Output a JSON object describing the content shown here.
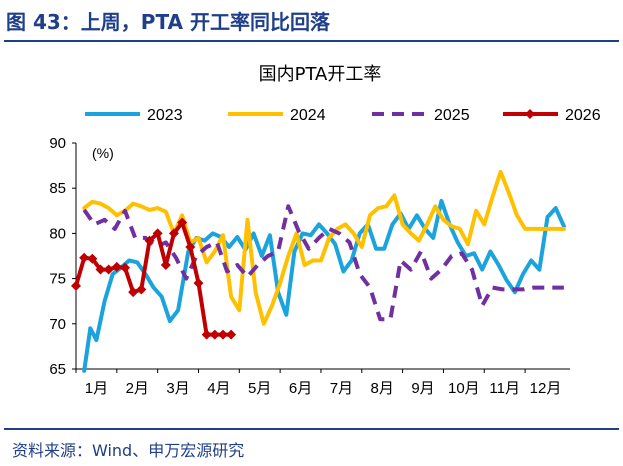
{
  "figure_title": "图 43：上周，PTA 开工率同比回落",
  "source": "资料来源：Wind、申万宏源研究",
  "chart_data": {
    "type": "line",
    "title": "国内PTA开工率",
    "unit": "(%)",
    "ylim": [
      65,
      90
    ],
    "yticks": [
      65,
      70,
      75,
      80,
      85,
      90
    ],
    "xlim": [
      0,
      12.1
    ],
    "xtick_labels": [
      "1月",
      "2月",
      "3月",
      "4月",
      "5月",
      "6月",
      "7月",
      "8月",
      "9月",
      "10月",
      "11月",
      "12月"
    ],
    "legend_position": "top",
    "grid": false,
    "series": [
      {
        "name": "2023",
        "color": "#1aa3dc",
        "dash": "solid",
        "markers": false,
        "x": [
          0.2,
          0.35,
          0.5,
          0.7,
          0.9,
          1.1,
          1.3,
          1.5,
          1.7,
          1.9,
          2.1,
          2.3,
          2.5,
          2.75,
          2.95,
          3.15,
          3.35,
          3.55,
          3.75,
          3.95,
          4.15,
          4.35,
          4.55,
          4.75,
          4.95,
          5.15,
          5.35,
          5.55,
          5.75,
          5.95,
          6.15,
          6.35,
          6.55,
          6.75,
          6.95,
          7.15,
          7.35,
          7.55,
          7.75,
          7.95,
          8.15,
          8.35,
          8.55,
          8.75,
          8.95,
          9.15,
          9.35,
          9.55,
          9.75,
          9.95,
          10.15,
          10.35,
          10.55,
          10.75,
          10.95,
          11.15,
          11.35,
          11.55,
          11.75,
          11.95
        ],
        "y": [
          64.8,
          69.5,
          68.2,
          72.5,
          75.5,
          76.2,
          77.0,
          76.8,
          75.5,
          74.0,
          73.0,
          70.3,
          71.5,
          78.0,
          79.5,
          79.2,
          80.0,
          79.6,
          78.5,
          79.6,
          78.2,
          80.0,
          77.5,
          79.8,
          73.5,
          71.0,
          78.0,
          80.0,
          79.8,
          81.0,
          80.0,
          78.8,
          75.8,
          77.0,
          80.0,
          81.0,
          78.3,
          78.3,
          81.0,
          82.2,
          80.5,
          82.0,
          80.5,
          79.5,
          83.6,
          81.0,
          79.0,
          77.5,
          77.8,
          76.0,
          78.0,
          76.5,
          74.8,
          73.5,
          75.5,
          77.0,
          76.0,
          81.8,
          82.8,
          80.8
        ]
      },
      {
        "name": "2024",
        "color": "#ffc000",
        "dash": "solid",
        "markers": false,
        "x": [
          0.2,
          0.4,
          0.6,
          0.8,
          1.0,
          1.2,
          1.4,
          1.6,
          1.8,
          2.0,
          2.2,
          2.4,
          2.6,
          2.8,
          3.0,
          3.2,
          3.4,
          3.6,
          3.8,
          4.0,
          4.2,
          4.4,
          4.6,
          4.8,
          5.0,
          5.2,
          5.4,
          5.6,
          5.8,
          6.0,
          6.2,
          6.4,
          6.6,
          6.8,
          7.0,
          7.2,
          7.4,
          7.6,
          7.8,
          8.0,
          8.2,
          8.4,
          8.6,
          8.8,
          9.0,
          9.2,
          9.4,
          9.6,
          9.8,
          10.0,
          10.2,
          10.4,
          10.6,
          10.8,
          11.0,
          11.2,
          11.4,
          11.6,
          11.8,
          11.95
        ],
        "y": [
          82.8,
          83.5,
          83.3,
          82.8,
          82.0,
          82.5,
          83.3,
          83.0,
          82.6,
          82.8,
          82.4,
          80.0,
          82.0,
          79.0,
          79.5,
          76.8,
          78.0,
          79.8,
          73.0,
          71.5,
          81.5,
          73.5,
          70.0,
          72.0,
          74.5,
          77.5,
          80.0,
          76.5,
          77.0,
          77.0,
          79.5,
          80.5,
          81.0,
          80.0,
          78.5,
          82.0,
          82.8,
          83.0,
          84.2,
          81.0,
          80.0,
          79.2,
          81.0,
          83.0,
          81.5,
          80.8,
          80.5,
          78.8,
          82.5,
          81.0,
          84.0,
          86.8,
          84.5,
          82.0,
          80.5,
          80.5,
          80.5,
          80.5,
          80.5,
          80.5
        ]
      },
      {
        "name": "2025",
        "color": "#7030a0",
        "dash": "dashed",
        "markers": false,
        "x": [
          0.2,
          0.45,
          0.7,
          0.95,
          1.2,
          1.45,
          1.7,
          1.95,
          2.2,
          2.45,
          2.7,
          2.95,
          3.2,
          3.45,
          3.7,
          3.95,
          4.2,
          4.45,
          4.7,
          4.95,
          5.2,
          5.45,
          5.7,
          5.95,
          6.2,
          6.45,
          6.7,
          6.95,
          7.2,
          7.45,
          7.7,
          7.95,
          8.2,
          8.45,
          8.7,
          8.95,
          9.2,
          9.45,
          9.7,
          9.95,
          10.2,
          10.45,
          10.7,
          10.95,
          11.2,
          11.45,
          11.7,
          11.95
        ],
        "y": [
          82.6,
          81.0,
          81.5,
          80.5,
          82.5,
          79.5,
          79.5,
          78.5,
          79.0,
          77.3,
          75.0,
          77.5,
          78.5,
          79.0,
          75.8,
          76.5,
          75.2,
          76.5,
          77.5,
          78.0,
          83.0,
          80.3,
          78.3,
          79.5,
          80.5,
          80.0,
          79.0,
          75.5,
          74.0,
          70.5,
          70.5,
          77.0,
          76.0,
          78.0,
          75.0,
          76.0,
          77.5,
          77.8,
          76.0,
          72.0,
          74.0,
          73.8,
          73.8,
          73.8,
          74.0,
          74.0,
          74.0,
          74.0
        ]
      },
      {
        "name": "2026",
        "color": "#c00000",
        "dash": "solid",
        "markers": true,
        "x": [
          0.0,
          0.2,
          0.4,
          0.6,
          0.8,
          1.0,
          1.2,
          1.4,
          1.6,
          1.8,
          2.0,
          2.2,
          2.4,
          2.6,
          2.8,
          3.0,
          3.2,
          3.4,
          3.6,
          3.8
        ],
        "y": [
          74.2,
          77.3,
          77.2,
          76.0,
          76.0,
          76.3,
          76.2,
          73.5,
          73.8,
          79.2,
          80.0,
          76.5,
          80.0,
          81.2,
          78.5,
          74.5,
          68.8,
          68.8,
          68.8,
          68.8
        ]
      }
    ]
  }
}
